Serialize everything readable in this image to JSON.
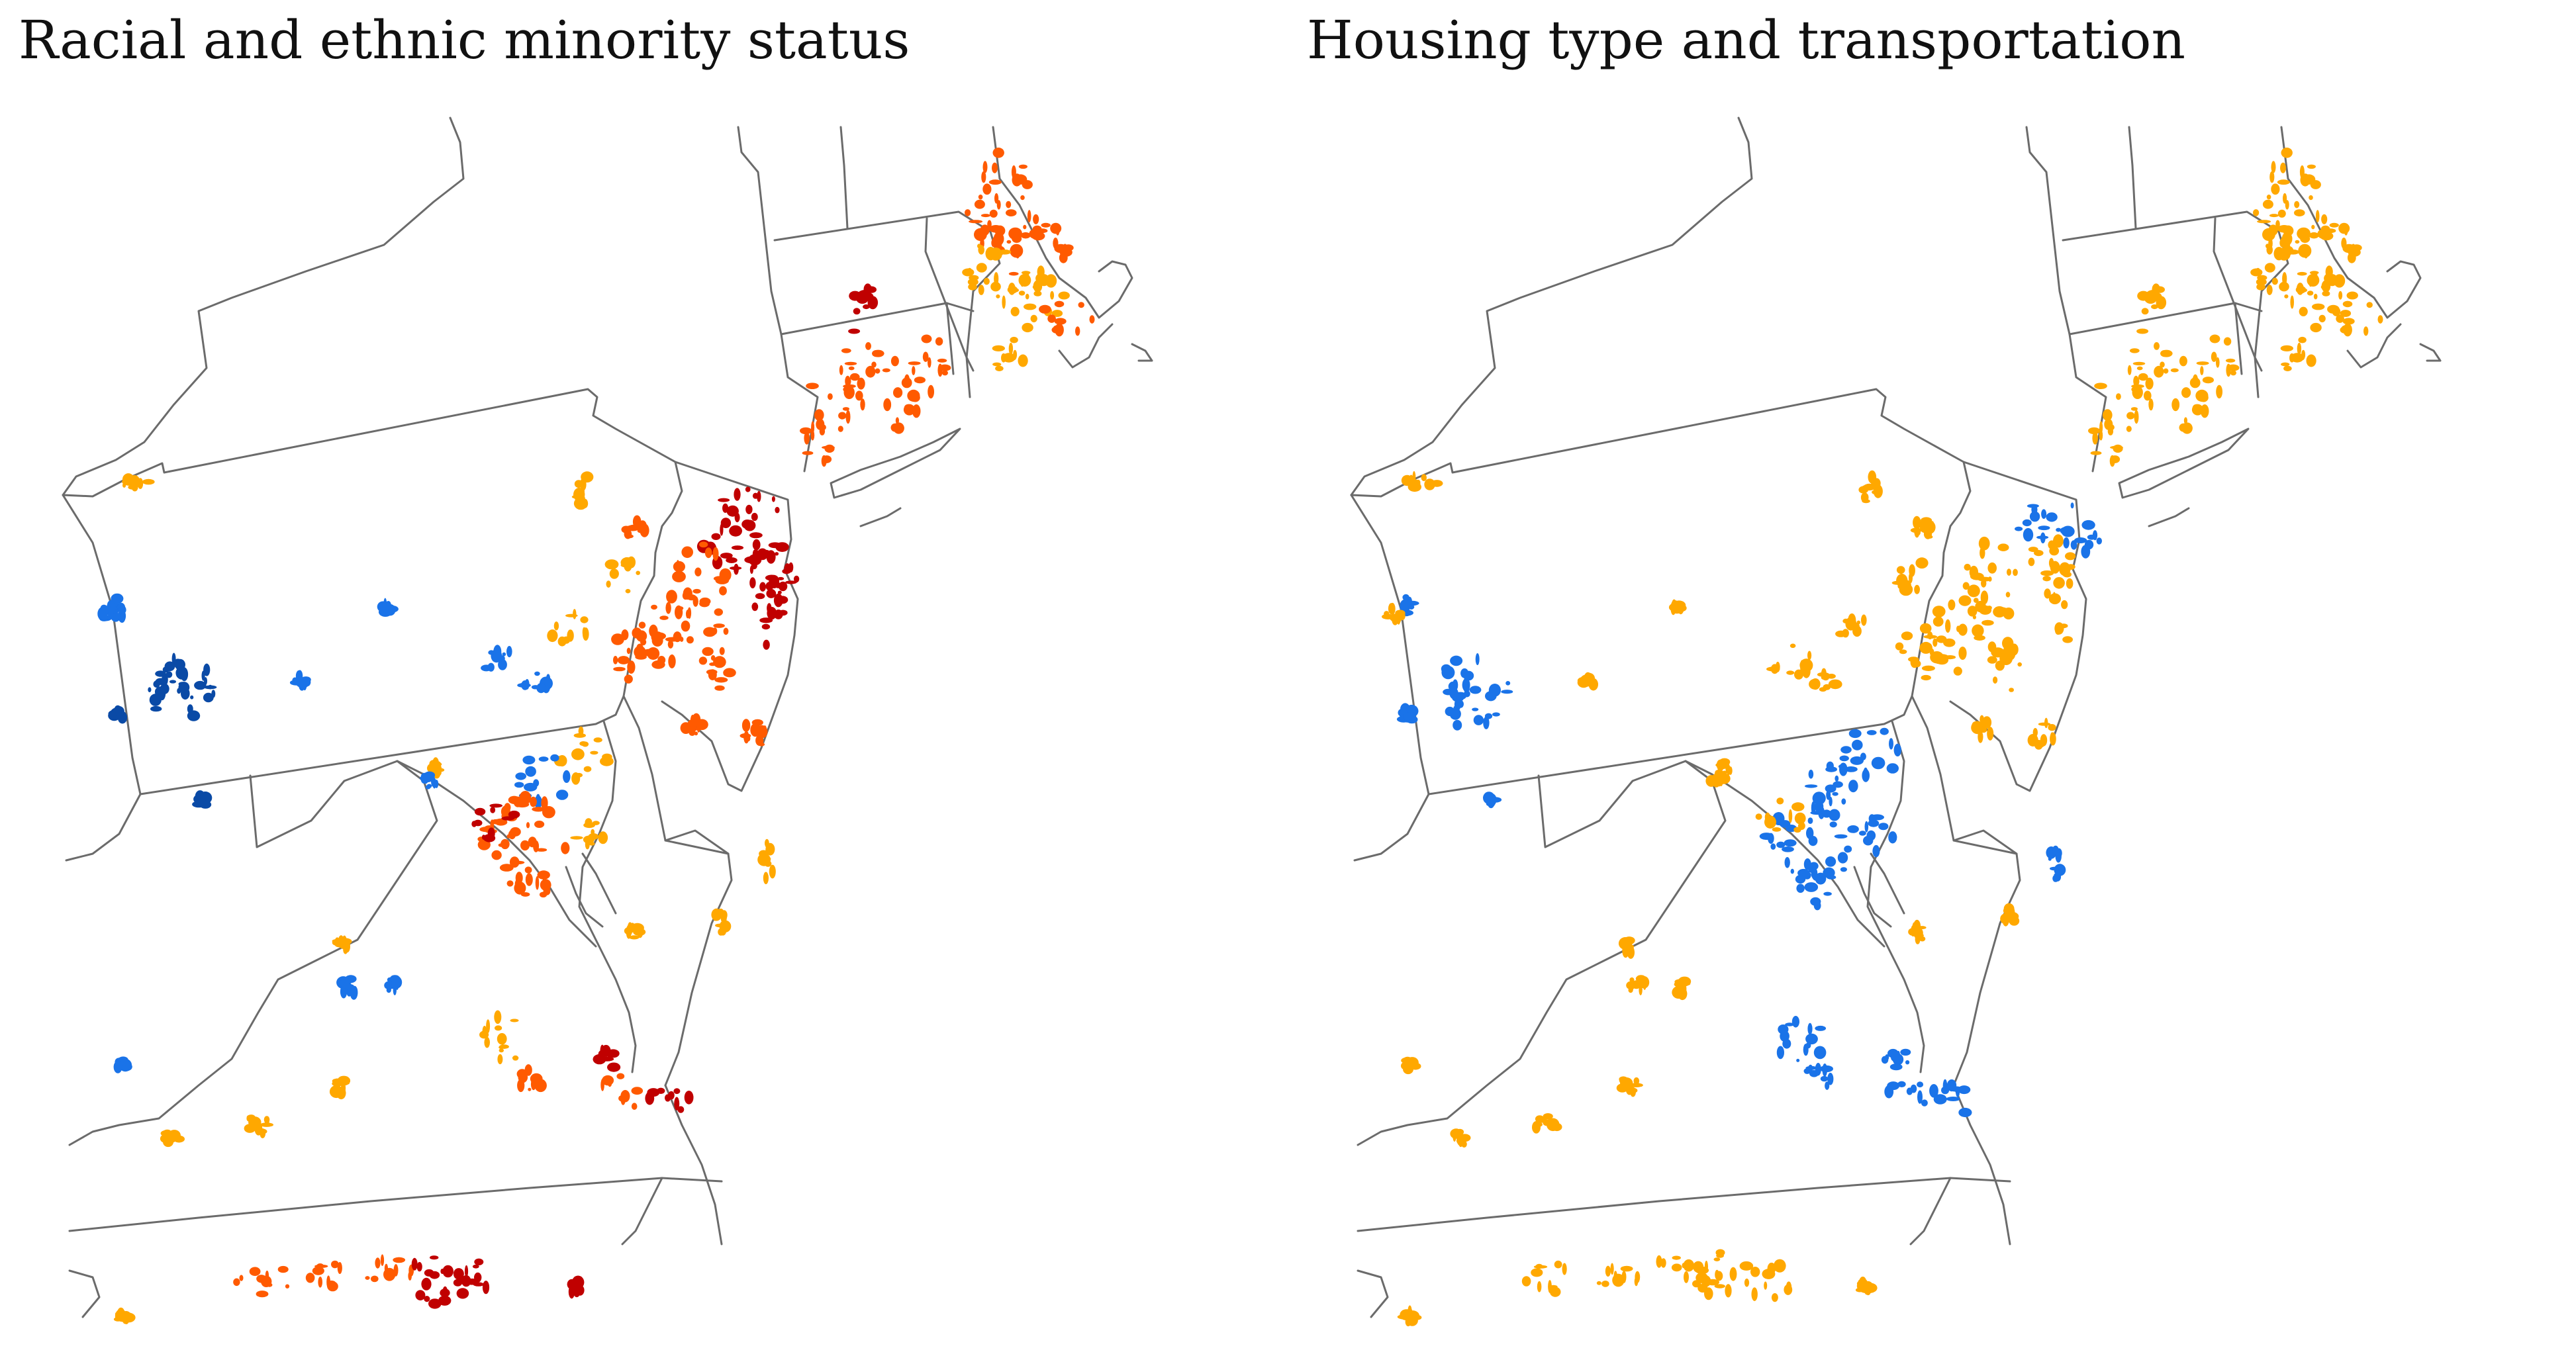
{
  "panels": [
    {
      "title": "Racial and ethnic minority status",
      "theme": "racial-ethnic-minority-status",
      "palette": {
        "dark_red": "#c00000",
        "orange_red": "#ff5a00",
        "orange": "#ffa800",
        "blue": "#1a73e8",
        "dark_blue": "#0a4aa6"
      }
    },
    {
      "title": "Housing type and transportation",
      "theme": "housing-type-and-transportation",
      "palette": {
        "orange": "#ffa800",
        "blue": "#1a73e8"
      }
    }
  ]
}
